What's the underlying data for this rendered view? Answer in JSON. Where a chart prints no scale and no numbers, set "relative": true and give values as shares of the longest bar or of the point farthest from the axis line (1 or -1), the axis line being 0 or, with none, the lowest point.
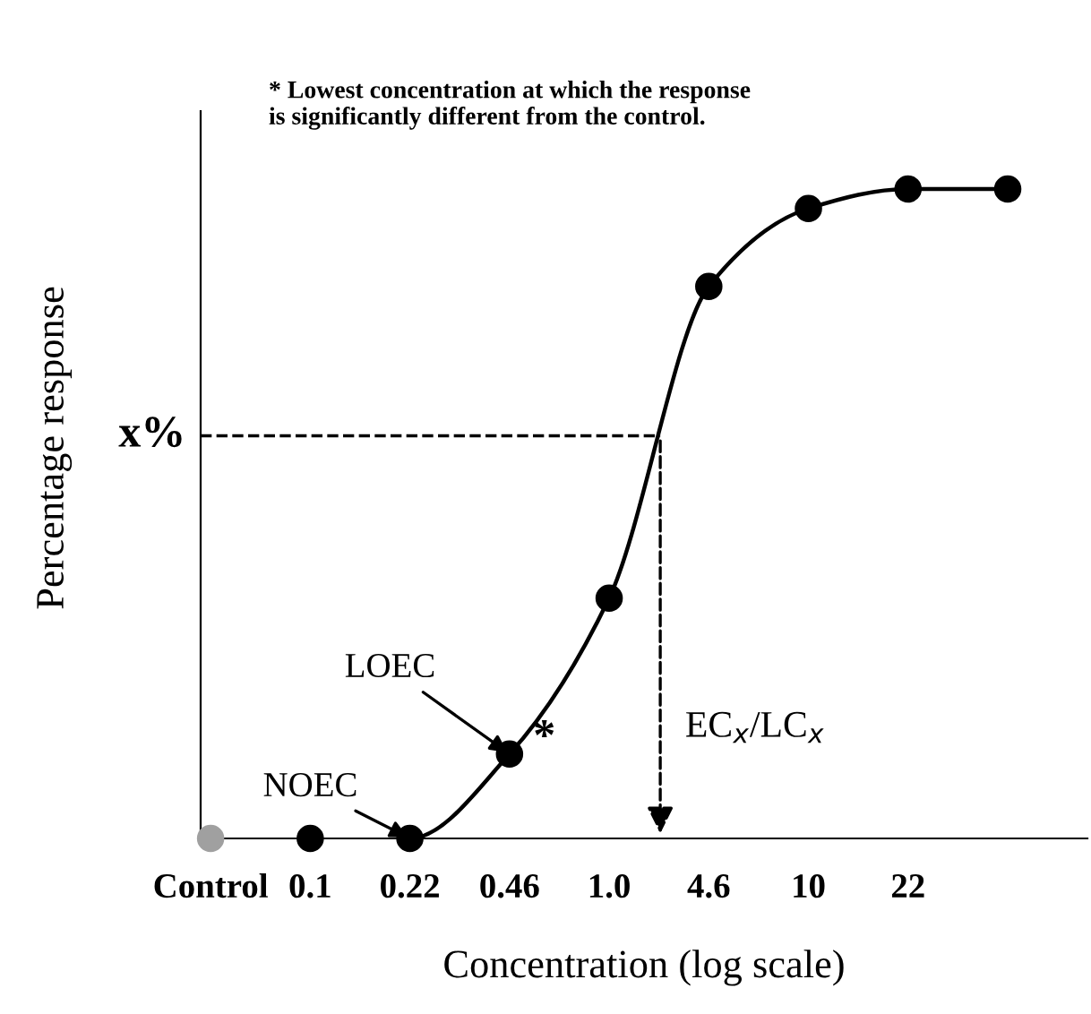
{
  "chart_data": {
    "type": "scatter",
    "xlabel": "Concentration (log scale)",
    "ylabel": "Percentage response",
    "relative": true,
    "categories": [
      "Control",
      "0.1",
      "0.22",
      "0.46",
      "1.0",
      "4.6",
      "10",
      "22",
      null
    ],
    "series": [
      {
        "values": [
          0,
          0,
          0,
          0.13,
          0.37,
          0.85,
          0.97,
          1.0,
          1.0
        ],
        "colors": [
          "#a0a0a0",
          "#000000",
          "#000000",
          "#000000",
          "#000000",
          "#000000",
          "#000000",
          "#000000",
          "#000000"
        ],
        "marker": "circle"
      },
      {
        "type": "line",
        "color": "#000000",
        "line_style": "solid",
        "values": [
          null,
          null,
          0,
          0.13,
          0.37,
          0.85,
          0.97,
          1.0,
          1.0
        ]
      }
    ],
    "ref_lines": [
      {
        "axis": "y",
        "value": 0.62,
        "label": "x%",
        "line_style": "dashed",
        "color": "#000000"
      }
    ],
    "annotations": [
      "* Lowest concentration at which the response\nis significantly different from the control.",
      {
        "text": "NOEC",
        "x": "0.22",
        "y": 0
      },
      {
        "text": "LOEC",
        "x": "0.46",
        "y": 0.13
      },
      {
        "text": "*",
        "x": "0.46",
        "y": 0.13
      },
      "EC$_{x}$/LC$_{x}$"
    ],
    "legend": false,
    "grid": false
  }
}
